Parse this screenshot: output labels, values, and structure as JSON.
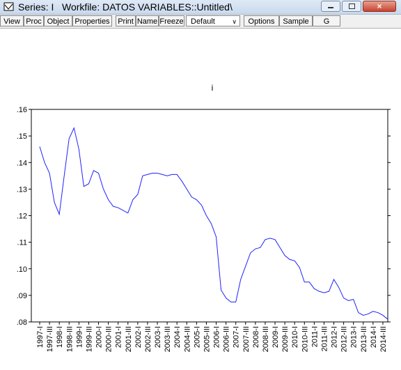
{
  "window": {
    "title": "Series: I   Workfile: DATOS VARIABLES::Untitled\\"
  },
  "toolbar": {
    "buttons": [
      "View",
      "Proc",
      "Object",
      "Properties",
      "Print",
      "Name",
      "Freeze"
    ],
    "dropdown": "Default",
    "buttons_right": [
      "Options",
      "Sample",
      "G"
    ]
  },
  "chart_data": {
    "type": "line",
    "title": "i",
    "categories": [
      "1997-I",
      null,
      "1997-III",
      null,
      "1998-I",
      null,
      "1998-III",
      null,
      "1999-I",
      null,
      "1999-III",
      null,
      "2000-I",
      null,
      "2000-III",
      null,
      "2001-I",
      null,
      "2001-III",
      null,
      "2002-I",
      null,
      "2002-III",
      null,
      "2003-I",
      null,
      "2003-III",
      null,
      "2004-I",
      null,
      "2004-III",
      null,
      "2005-I",
      null,
      "2005-III",
      null,
      "2006-I",
      null,
      "2006-III",
      null,
      "2007-I",
      null,
      "2007-III",
      null,
      "2008-I",
      null,
      "2008-III",
      null,
      "2009-I",
      null,
      "2009-III",
      null,
      "2010-I",
      null,
      "2010-III",
      null,
      "2011-I",
      null,
      "2011-III",
      null,
      "2012-I",
      null,
      "2012-III",
      null,
      "2013-I",
      null,
      "2013-III",
      null,
      "2014-I",
      null,
      "2014-III",
      null
    ],
    "series": [
      {
        "name": "i",
        "color": "#2020ff",
        "values": [
          0.146,
          0.14,
          0.136,
          0.125,
          0.1205,
          0.135,
          0.149,
          0.153,
          0.145,
          0.131,
          0.132,
          0.137,
          0.136,
          0.13,
          0.126,
          0.1235,
          0.123,
          0.122,
          0.121,
          0.126,
          0.128,
          0.135,
          0.1355,
          0.136,
          0.136,
          0.1355,
          0.135,
          0.1355,
          0.1355,
          0.133,
          0.13,
          0.127,
          0.126,
          0.124,
          0.12,
          0.117,
          0.112,
          0.092,
          0.089,
          0.0875,
          0.0875,
          0.096,
          0.101,
          0.106,
          0.1075,
          0.108,
          0.111,
          0.1115,
          0.111,
          0.108,
          0.105,
          0.1035,
          0.103,
          0.1005,
          0.095,
          0.095,
          0.0925,
          0.0915,
          0.091,
          0.0915,
          0.096,
          0.093,
          0.089,
          0.088,
          0.0885,
          0.0835,
          0.0825,
          0.083,
          0.084,
          0.0835,
          0.0825,
          0.081
        ]
      }
    ],
    "ylim": [
      0.08,
      0.16
    ],
    "yticks": [
      {
        "value": 0.08,
        "label": ".08"
      },
      {
        "value": 0.09,
        "label": ".09"
      },
      {
        "value": 0.1,
        "label": ".10"
      },
      {
        "value": 0.11,
        "label": ".11"
      },
      {
        "value": 0.12,
        "label": ".12"
      },
      {
        "value": 0.13,
        "label": ".13"
      },
      {
        "value": 0.14,
        "label": ".14"
      },
      {
        "value": 0.15,
        "label": ".15"
      },
      {
        "value": 0.16,
        "label": ".16"
      }
    ],
    "grid": false
  }
}
